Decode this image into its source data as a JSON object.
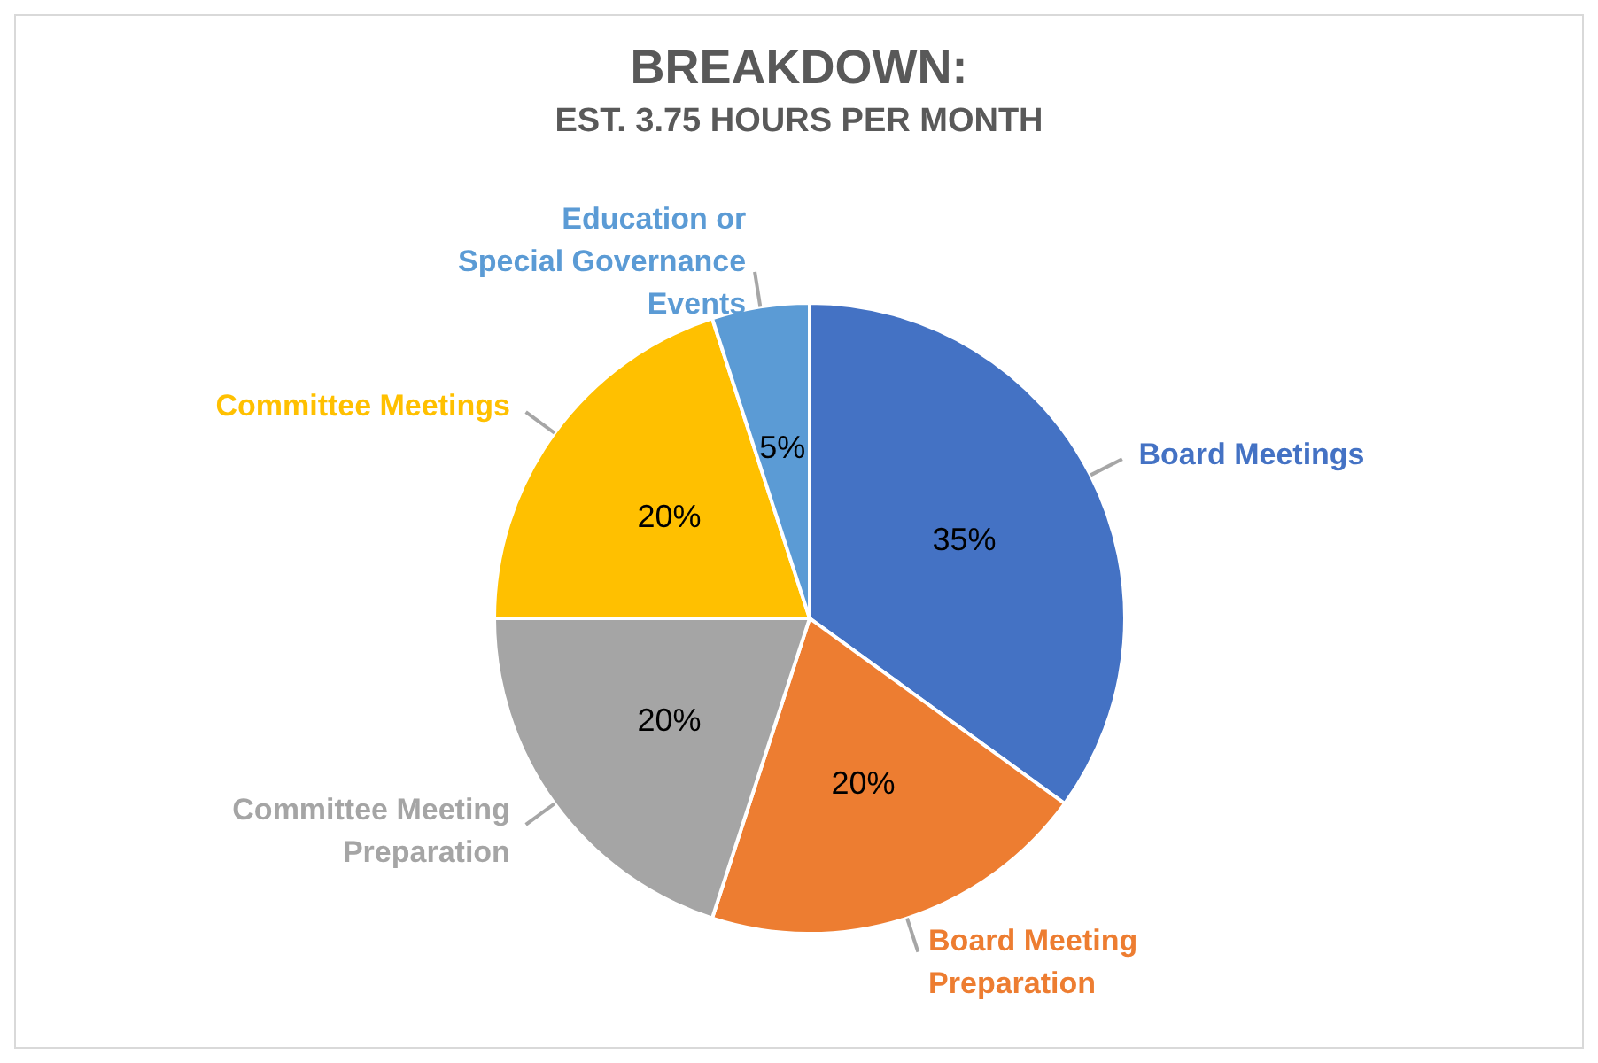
{
  "chart_data": {
    "type": "pie",
    "title": "BREAKDOWN:",
    "subtitle": "EST. 3.75 HOURS PER MONTH",
    "categories": [
      "Board Meetings",
      "Board Meeting Preparation",
      "Committee Meeting Preparation",
      "Committee Meetings",
      "Education or Special Governance Events"
    ],
    "values": [
      35,
      20,
      20,
      20,
      5
    ],
    "value_labels": [
      "35%",
      "20%",
      "20%",
      "20%",
      "5%"
    ],
    "colors": [
      "#4472c4",
      "#ed7d31",
      "#a5a5a5",
      "#ffc000",
      "#5b9bd5"
    ],
    "legend": false
  }
}
